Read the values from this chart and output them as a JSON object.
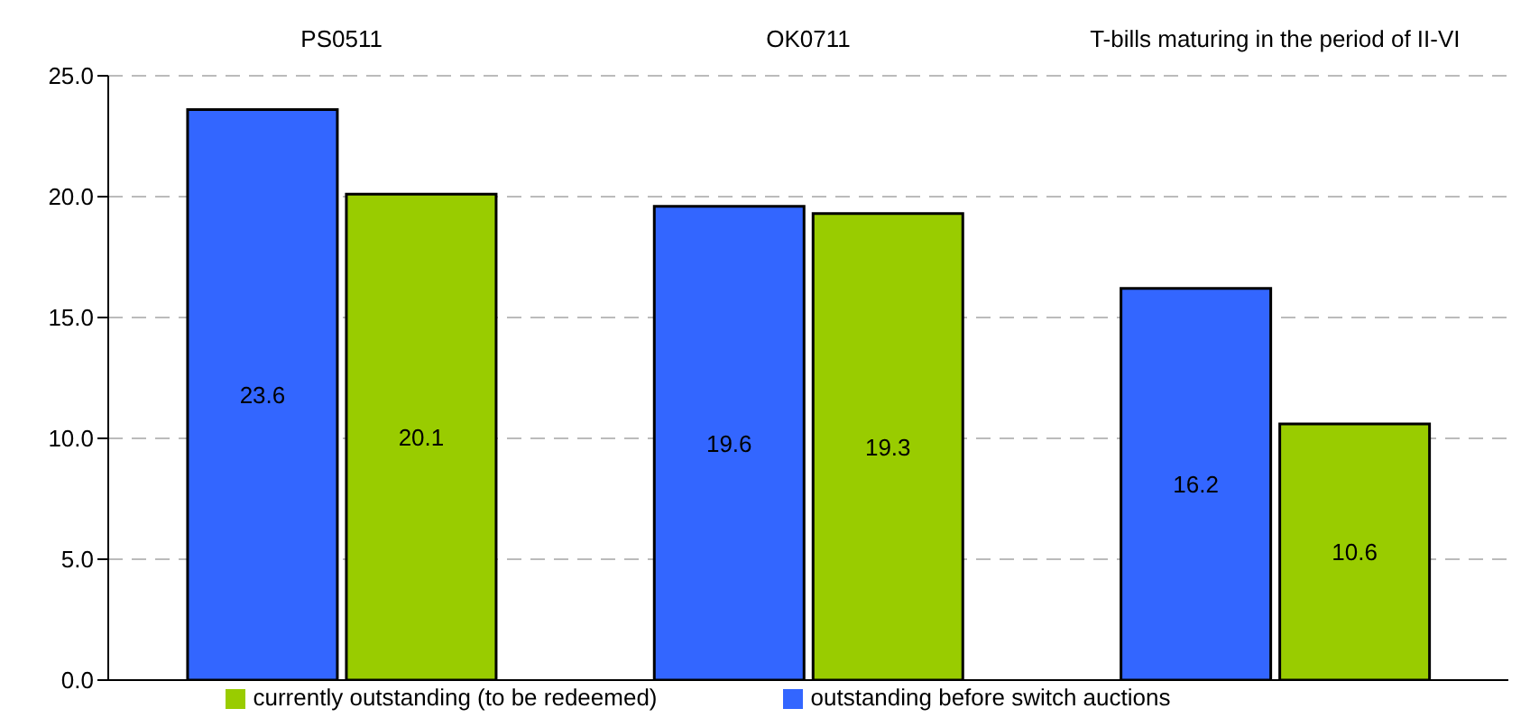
{
  "chart_data": {
    "type": "bar",
    "categories": [
      "PS0511",
      "OK0711",
      "T-bills maturing in the period of II-VI"
    ],
    "series": [
      {
        "name": "outstanding before switch auctions",
        "color": "#3366ff",
        "values": [
          23.6,
          19.6,
          16.2
        ]
      },
      {
        "name": "currently outstanding (to be redeemed)",
        "color": "#99cc00",
        "values": [
          20.1,
          19.3,
          10.6
        ]
      }
    ],
    "ylim": [
      0,
      25
    ],
    "yticks": [
      {
        "value": 0,
        "label": "0.0"
      },
      {
        "value": 5,
        "label": "5.0"
      },
      {
        "value": 10,
        "label": "10.0"
      },
      {
        "value": 15,
        "label": "15.0"
      },
      {
        "value": 20,
        "label": "20.0"
      },
      {
        "value": 25,
        "label": "25.0"
      }
    ],
    "grid": "y",
    "legend": "bottom",
    "data_labels": true
  }
}
